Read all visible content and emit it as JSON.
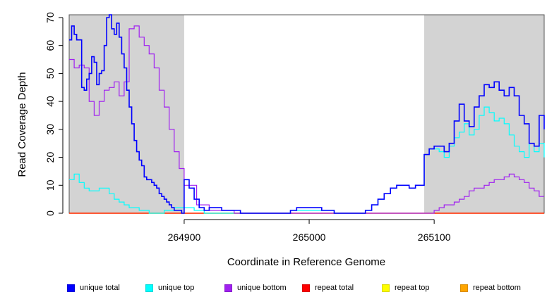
{
  "chart_data": {
    "type": "line",
    "title": "",
    "xlabel": "Coordinate in Reference Genome",
    "ylabel": "Read Coverage Depth",
    "xlim": [
      264808,
      265188
    ],
    "ylim": [
      0,
      71
    ],
    "x_ticks": [
      264900,
      265000,
      265100
    ],
    "y_ticks": [
      0,
      10,
      20,
      30,
      40,
      50,
      60,
      70
    ],
    "x_tick_labels": [
      "264900",
      "265000",
      "265100"
    ],
    "y_tick_labels": [
      "0",
      "10",
      "20",
      "30",
      "40",
      "50",
      "60",
      "70"
    ],
    "grid": false,
    "shaded_regions": [
      {
        "x0": 264808,
        "x1": 264900,
        "color": "#d3d3d3"
      },
      {
        "x0": 265092,
        "x1": 265188,
        "color": "#d3d3d3"
      }
    ],
    "legend_position": "bottom",
    "series": [
      {
        "name": "unique total",
        "color": "#0000ff",
        "step_x": [
          264808,
          264810,
          264812,
          264814,
          264816,
          264818,
          264820,
          264822,
          264824,
          264826,
          264828,
          264830,
          264832,
          264834,
          264836,
          264838,
          264840,
          264842,
          264844,
          264846,
          264848,
          264850,
          264852,
          264854,
          264856,
          264858,
          264860,
          264862,
          264864,
          264866,
          264868,
          264870,
          264872,
          264874,
          264876,
          264878,
          264880,
          264882,
          264884,
          264886,
          264888,
          264890,
          264892,
          264894,
          264896,
          264898,
          264900,
          264904,
          264908,
          264912,
          264916,
          264920,
          264925,
          264930,
          264945,
          264960,
          264975,
          264985,
          264990,
          265000,
          265010,
          265020,
          265030,
          265040,
          265045,
          265050,
          265055,
          265060,
          265065,
          265070,
          265075,
          265080,
          265085,
          265088,
          265092,
          265096,
          265100,
          265104,
          265108,
          265112,
          265116,
          265120,
          265124,
          265128,
          265132,
          265136,
          265140,
          265144,
          265148,
          265152,
          265156,
          265160,
          265164,
          265168,
          265172,
          265176,
          265180,
          265184,
          265188
        ],
        "step_y": [
          62,
          67,
          64,
          62,
          62,
          45,
          44,
          48,
          50,
          56,
          54,
          46,
          50,
          51,
          60,
          70,
          71,
          66,
          64,
          68,
          63,
          57,
          52,
          44,
          38,
          32,
          26,
          22,
          19,
          17,
          13,
          12,
          12,
          11,
          10,
          9,
          7,
          6,
          5,
          4,
          3,
          2,
          1,
          1,
          1,
          0,
          12,
          9,
          5,
          2,
          1,
          2,
          2,
          1,
          0,
          0,
          0,
          1,
          2,
          2,
          1,
          0,
          0,
          0,
          1,
          3,
          5,
          7,
          9,
          10,
          10,
          9,
          10,
          10,
          21,
          23,
          24,
          24,
          22,
          25,
          33,
          39,
          33,
          31,
          38,
          42,
          46,
          45,
          47,
          44,
          42,
          45,
          42,
          35,
          32,
          25,
          24,
          35,
          30
        ]
      },
      {
        "name": "unique top",
        "color": "#00ffff",
        "step_x": [
          264808,
          264812,
          264816,
          264820,
          264824,
          264828,
          264832,
          264836,
          264840,
          264844,
          264848,
          264852,
          264856,
          264860,
          264864,
          264868,
          264872,
          264876,
          264880,
          264884,
          264888,
          264892,
          264896,
          264900,
          264904,
          264908,
          264912,
          264916,
          264920,
          264925,
          264930,
          264945,
          264960,
          264975,
          264985,
          264990,
          265000,
          265010,
          265020,
          265030,
          265040,
          265045,
          265050,
          265055,
          265060,
          265065,
          265070,
          265075,
          265080,
          265085,
          265088,
          265092,
          265096,
          265100,
          265104,
          265108,
          265112,
          265116,
          265120,
          265124,
          265128,
          265132,
          265136,
          265140,
          265144,
          265148,
          265152,
          265156,
          265160,
          265164,
          265168,
          265172,
          265176,
          265180,
          265184,
          265188
        ],
        "step_y": [
          12,
          14,
          11,
          9,
          8,
          8,
          9,
          9,
          7,
          5,
          4,
          3,
          2,
          2,
          1,
          1,
          0,
          0,
          0,
          1,
          1,
          2,
          2,
          2,
          2,
          1,
          1,
          0,
          0,
          0,
          0,
          0,
          0,
          0,
          1,
          1,
          1,
          1,
          0,
          0,
          0,
          1,
          3,
          5,
          7,
          9,
          10,
          10,
          9,
          10,
          10,
          21,
          23,
          23,
          22,
          20,
          24,
          27,
          29,
          32,
          28,
          30,
          35,
          38,
          36,
          33,
          34,
          32,
          28,
          24,
          22,
          20,
          25,
          22,
          25,
          20
        ],
        "note_shape": "derived"
      },
      {
        "name": "unique bottom",
        "color": "#a020f0",
        "step_x": [
          264808,
          264812,
          264816,
          264820,
          264824,
          264828,
          264832,
          264836,
          264840,
          264844,
          264848,
          264852,
          264856,
          264860,
          264864,
          264868,
          264872,
          264876,
          264880,
          264884,
          264888,
          264892,
          264896,
          264900,
          264910,
          264920,
          264940,
          264960,
          264980,
          265000,
          265020,
          265040,
          265060,
          265080,
          265092,
          265100,
          265104,
          265108,
          265112,
          265116,
          265120,
          265124,
          265128,
          265132,
          265136,
          265140,
          265144,
          265148,
          265152,
          265156,
          265160,
          265164,
          265168,
          265172,
          265176,
          265180,
          265184,
          265188
        ],
        "step_y": [
          55,
          52,
          53,
          52,
          40,
          35,
          40,
          44,
          45,
          47,
          42,
          47,
          66,
          67,
          63,
          60,
          57,
          52,
          44,
          38,
          30,
          22,
          16,
          10,
          3,
          1,
          0,
          0,
          0,
          0,
          0,
          0,
          0,
          0,
          0,
          1,
          2,
          3,
          3,
          4,
          5,
          6,
          8,
          9,
          9,
          10,
          11,
          12,
          12,
          13,
          14,
          13,
          12,
          11,
          9,
          8,
          6,
          6
        ]
      },
      {
        "name": "repeat total",
        "color": "#ff0000",
        "step_x": [
          264808,
          265188
        ],
        "step_y": [
          0,
          0
        ]
      },
      {
        "name": "repeat top",
        "color": "#ffff00",
        "step_x": [
          264808,
          265188
        ],
        "step_y": [
          0,
          0
        ]
      },
      {
        "name": "repeat bottom",
        "color": "#ffa500",
        "step_x": [
          264808,
          265188
        ],
        "step_y": [
          0,
          0
        ]
      }
    ]
  }
}
